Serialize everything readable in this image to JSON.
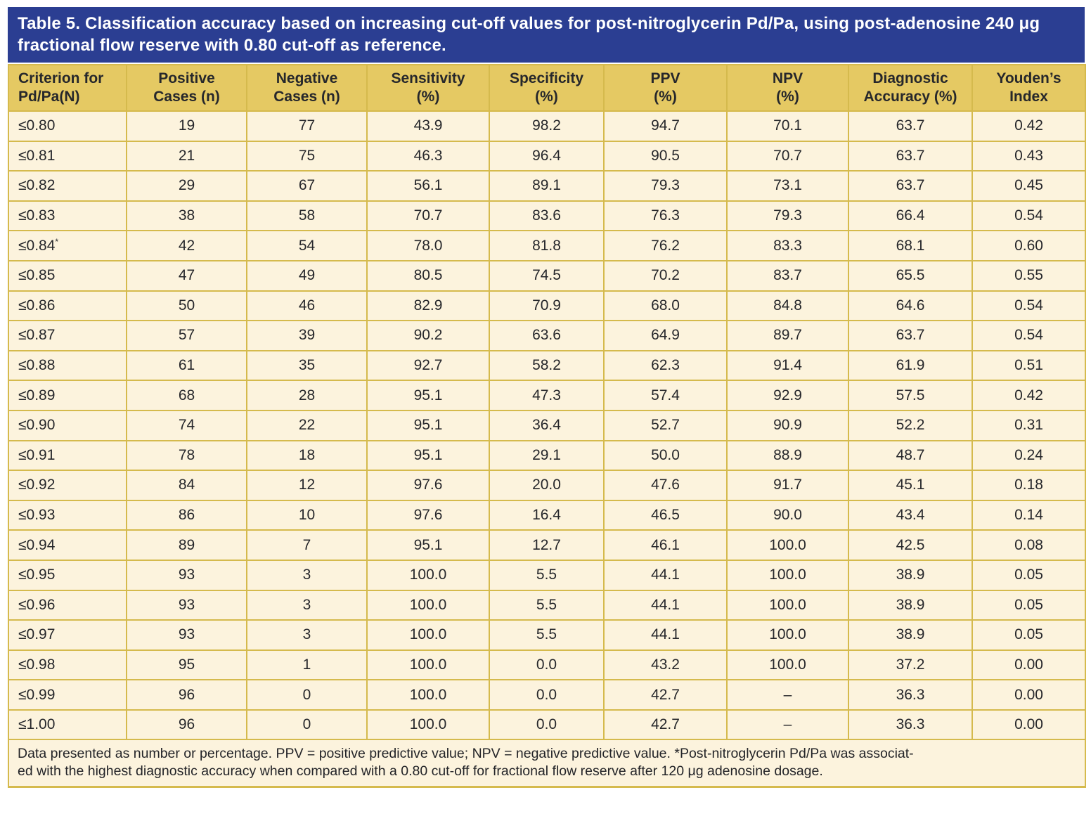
{
  "title": "Table 5. Classification accuracy based on increasing cut-off values for post-nitroglycerin Pd/Pa, using post-adenosine 240 μg fractional flow reserve with 0.80 cut-off as reference.",
  "colors": {
    "title_band": "#2b3e92",
    "title_text": "#ffffff",
    "header_band": "#e5c963",
    "cell_background": "#fcf3dd",
    "grid_border": "#d5ba4d",
    "body_text": "#26272b"
  },
  "table": {
    "columns": [
      {
        "id": "criterion",
        "align": "left",
        "lines": [
          "Criterion for",
          "Pd/Pa(N)"
        ]
      },
      {
        "id": "positive",
        "align": "center",
        "lines": [
          "Positive",
          "Cases (n)"
        ]
      },
      {
        "id": "negative",
        "align": "center",
        "lines": [
          "Negative",
          "Cases (n)"
        ]
      },
      {
        "id": "sensitivity",
        "align": "center",
        "lines": [
          "Sensitivity",
          "(%)"
        ]
      },
      {
        "id": "specificity",
        "align": "center",
        "lines": [
          "Specificity",
          "(%)"
        ]
      },
      {
        "id": "ppv",
        "align": "center",
        "lines": [
          "PPV",
          "(%)"
        ]
      },
      {
        "id": "npv",
        "align": "center",
        "lines": [
          "NPV",
          "(%)"
        ]
      },
      {
        "id": "accuracy",
        "align": "center",
        "lines": [
          "Diagnostic",
          "Accuracy (%)"
        ]
      },
      {
        "id": "youden",
        "align": "center",
        "lines": [
          "Youden’s",
          "Index"
        ]
      }
    ],
    "rows": [
      {
        "criterion": "≤0.80",
        "sup": "",
        "cells": [
          "19",
          "77",
          "43.9",
          "98.2",
          "94.7",
          "70.1",
          "63.7",
          "0.42"
        ]
      },
      {
        "criterion": "≤0.81",
        "sup": "",
        "cells": [
          "21",
          "75",
          "46.3",
          "96.4",
          "90.5",
          "70.7",
          "63.7",
          "0.43"
        ]
      },
      {
        "criterion": "≤0.82",
        "sup": "",
        "cells": [
          "29",
          "67",
          "56.1",
          "89.1",
          "79.3",
          "73.1",
          "63.7",
          "0.45"
        ]
      },
      {
        "criterion": "≤0.83",
        "sup": "",
        "cells": [
          "38",
          "58",
          "70.7",
          "83.6",
          "76.3",
          "79.3",
          "66.4",
          "0.54"
        ]
      },
      {
        "criterion": "≤0.84",
        "sup": "*",
        "cells": [
          "42",
          "54",
          "78.0",
          "81.8",
          "76.2",
          "83.3",
          "68.1",
          "0.60"
        ]
      },
      {
        "criterion": "≤0.85",
        "sup": "",
        "cells": [
          "47",
          "49",
          "80.5",
          "74.5",
          "70.2",
          "83.7",
          "65.5",
          "0.55"
        ]
      },
      {
        "criterion": "≤0.86",
        "sup": "",
        "cells": [
          "50",
          "46",
          "82.9",
          "70.9",
          "68.0",
          "84.8",
          "64.6",
          "0.54"
        ]
      },
      {
        "criterion": "≤0.87",
        "sup": "",
        "cells": [
          "57",
          "39",
          "90.2",
          "63.6",
          "64.9",
          "89.7",
          "63.7",
          "0.54"
        ]
      },
      {
        "criterion": "≤0.88",
        "sup": "",
        "cells": [
          "61",
          "35",
          "92.7",
          "58.2",
          "62.3",
          "91.4",
          "61.9",
          "0.51"
        ]
      },
      {
        "criterion": "≤0.89",
        "sup": "",
        "cells": [
          "68",
          "28",
          "95.1",
          "47.3",
          "57.4",
          "92.9",
          "57.5",
          "0.42"
        ]
      },
      {
        "criterion": "≤0.90",
        "sup": "",
        "cells": [
          "74",
          "22",
          "95.1",
          "36.4",
          "52.7",
          "90.9",
          "52.2",
          "0.31"
        ]
      },
      {
        "criterion": "≤0.91",
        "sup": "",
        "cells": [
          "78",
          "18",
          "95.1",
          "29.1",
          "50.0",
          "88.9",
          "48.7",
          "0.24"
        ]
      },
      {
        "criterion": "≤0.92",
        "sup": "",
        "cells": [
          "84",
          "12",
          "97.6",
          "20.0",
          "47.6",
          "91.7",
          "45.1",
          "0.18"
        ]
      },
      {
        "criterion": "≤0.93",
        "sup": "",
        "cells": [
          "86",
          "10",
          "97.6",
          "16.4",
          "46.5",
          "90.0",
          "43.4",
          "0.14"
        ]
      },
      {
        "criterion": "≤0.94",
        "sup": "",
        "cells": [
          "89",
          "7",
          "95.1",
          "12.7",
          "46.1",
          "100.0",
          "42.5",
          "0.08"
        ]
      },
      {
        "criterion": "≤0.95",
        "sup": "",
        "cells": [
          "93",
          "3",
          "100.0",
          "5.5",
          "44.1",
          "100.0",
          "38.9",
          "0.05"
        ]
      },
      {
        "criterion": "≤0.96",
        "sup": "",
        "cells": [
          "93",
          "3",
          "100.0",
          "5.5",
          "44.1",
          "100.0",
          "38.9",
          "0.05"
        ]
      },
      {
        "criterion": "≤0.97",
        "sup": "",
        "cells": [
          "93",
          "3",
          "100.0",
          "5.5",
          "44.1",
          "100.0",
          "38.9",
          "0.05"
        ]
      },
      {
        "criterion": "≤0.98",
        "sup": "",
        "cells": [
          "95",
          "1",
          "100.0",
          "0.0",
          "43.2",
          "100.0",
          "37.2",
          "0.00"
        ]
      },
      {
        "criterion": "≤0.99",
        "sup": "",
        "cells": [
          "96",
          "0",
          "100.0",
          "0.0",
          "42.7",
          "–",
          "36.3",
          "0.00"
        ]
      },
      {
        "criterion": "≤1.00",
        "sup": "",
        "cells": [
          "96",
          "0",
          "100.0",
          "0.0",
          "42.7",
          "–",
          "36.3",
          "0.00"
        ]
      }
    ]
  },
  "footnote": {
    "line1": "Data presented as number or percentage. PPV = positive predictive value; NPV = negative predictive value. *Post-nitroglycerin Pd/Pa was associat-",
    "line2": "ed with the highest diagnostic accuracy when compared with a 0.80 cut-off for fractional flow reserve after 120 μg adenosine dosage."
  }
}
